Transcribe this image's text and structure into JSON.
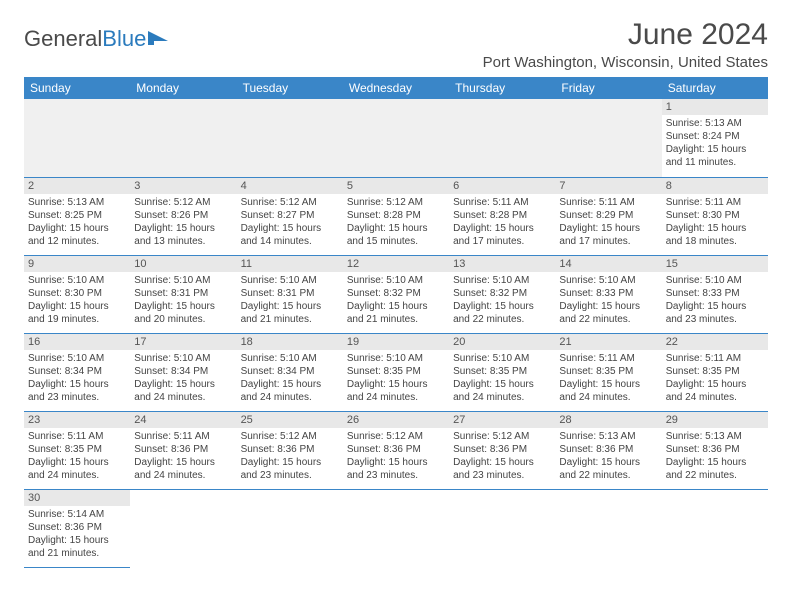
{
  "logo": {
    "text1": "General",
    "text2": "Blue"
  },
  "title": "June 2024",
  "subtitle": "Port Washington, Wisconsin, United States",
  "colors": {
    "header_bg": "#3a86c8",
    "header_text": "#ffffff",
    "daynum_bg": "#e8e8e8",
    "border": "#3a86c8",
    "logo_blue": "#2b7bbd",
    "text": "#4a4a4a"
  },
  "weekdays": [
    "Sunday",
    "Monday",
    "Tuesday",
    "Wednesday",
    "Thursday",
    "Friday",
    "Saturday"
  ],
  "blank_leading": 6,
  "days": [
    {
      "n": 1,
      "sr": "5:13 AM",
      "ss": "8:24 PM",
      "dl": "15 hours and 11 minutes."
    },
    {
      "n": 2,
      "sr": "5:13 AM",
      "ss": "8:25 PM",
      "dl": "15 hours and 12 minutes."
    },
    {
      "n": 3,
      "sr": "5:12 AM",
      "ss": "8:26 PM",
      "dl": "15 hours and 13 minutes."
    },
    {
      "n": 4,
      "sr": "5:12 AM",
      "ss": "8:27 PM",
      "dl": "15 hours and 14 minutes."
    },
    {
      "n": 5,
      "sr": "5:12 AM",
      "ss": "8:28 PM",
      "dl": "15 hours and 15 minutes."
    },
    {
      "n": 6,
      "sr": "5:11 AM",
      "ss": "8:28 PM",
      "dl": "15 hours and 17 minutes."
    },
    {
      "n": 7,
      "sr": "5:11 AM",
      "ss": "8:29 PM",
      "dl": "15 hours and 17 minutes."
    },
    {
      "n": 8,
      "sr": "5:11 AM",
      "ss": "8:30 PM",
      "dl": "15 hours and 18 minutes."
    },
    {
      "n": 9,
      "sr": "5:10 AM",
      "ss": "8:30 PM",
      "dl": "15 hours and 19 minutes."
    },
    {
      "n": 10,
      "sr": "5:10 AM",
      "ss": "8:31 PM",
      "dl": "15 hours and 20 minutes."
    },
    {
      "n": 11,
      "sr": "5:10 AM",
      "ss": "8:31 PM",
      "dl": "15 hours and 21 minutes."
    },
    {
      "n": 12,
      "sr": "5:10 AM",
      "ss": "8:32 PM",
      "dl": "15 hours and 21 minutes."
    },
    {
      "n": 13,
      "sr": "5:10 AM",
      "ss": "8:32 PM",
      "dl": "15 hours and 22 minutes."
    },
    {
      "n": 14,
      "sr": "5:10 AM",
      "ss": "8:33 PM",
      "dl": "15 hours and 22 minutes."
    },
    {
      "n": 15,
      "sr": "5:10 AM",
      "ss": "8:33 PM",
      "dl": "15 hours and 23 minutes."
    },
    {
      "n": 16,
      "sr": "5:10 AM",
      "ss": "8:34 PM",
      "dl": "15 hours and 23 minutes."
    },
    {
      "n": 17,
      "sr": "5:10 AM",
      "ss": "8:34 PM",
      "dl": "15 hours and 24 minutes."
    },
    {
      "n": 18,
      "sr": "5:10 AM",
      "ss": "8:34 PM",
      "dl": "15 hours and 24 minutes."
    },
    {
      "n": 19,
      "sr": "5:10 AM",
      "ss": "8:35 PM",
      "dl": "15 hours and 24 minutes."
    },
    {
      "n": 20,
      "sr": "5:10 AM",
      "ss": "8:35 PM",
      "dl": "15 hours and 24 minutes."
    },
    {
      "n": 21,
      "sr": "5:11 AM",
      "ss": "8:35 PM",
      "dl": "15 hours and 24 minutes."
    },
    {
      "n": 22,
      "sr": "5:11 AM",
      "ss": "8:35 PM",
      "dl": "15 hours and 24 minutes."
    },
    {
      "n": 23,
      "sr": "5:11 AM",
      "ss": "8:35 PM",
      "dl": "15 hours and 24 minutes."
    },
    {
      "n": 24,
      "sr": "5:11 AM",
      "ss": "8:36 PM",
      "dl": "15 hours and 24 minutes."
    },
    {
      "n": 25,
      "sr": "5:12 AM",
      "ss": "8:36 PM",
      "dl": "15 hours and 23 minutes."
    },
    {
      "n": 26,
      "sr": "5:12 AM",
      "ss": "8:36 PM",
      "dl": "15 hours and 23 minutes."
    },
    {
      "n": 27,
      "sr": "5:12 AM",
      "ss": "8:36 PM",
      "dl": "15 hours and 23 minutes."
    },
    {
      "n": 28,
      "sr": "5:13 AM",
      "ss": "8:36 PM",
      "dl": "15 hours and 22 minutes."
    },
    {
      "n": 29,
      "sr": "5:13 AM",
      "ss": "8:36 PM",
      "dl": "15 hours and 22 minutes."
    },
    {
      "n": 30,
      "sr": "5:14 AM",
      "ss": "8:36 PM",
      "dl": "15 hours and 21 minutes."
    }
  ],
  "labels": {
    "sunrise": "Sunrise:",
    "sunset": "Sunset:",
    "daylight": "Daylight:"
  }
}
